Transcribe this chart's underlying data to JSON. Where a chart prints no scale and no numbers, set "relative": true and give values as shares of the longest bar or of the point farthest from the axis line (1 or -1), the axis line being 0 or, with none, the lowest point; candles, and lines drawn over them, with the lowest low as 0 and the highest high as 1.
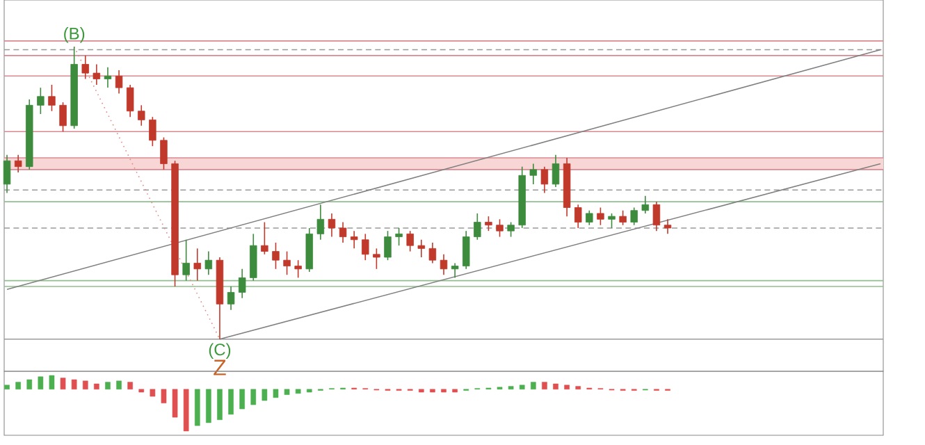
{
  "chart_data": [
    {
      "type": "candlestick",
      "relative": true,
      "categories": [
        null,
        null,
        null,
        null,
        null,
        null,
        null,
        null,
        null,
        null,
        null,
        null,
        null,
        null,
        null,
        null,
        null,
        null,
        null,
        null,
        null,
        null,
        null,
        null,
        null,
        null,
        null,
        null,
        null,
        null,
        null,
        null,
        null,
        null,
        null,
        null,
        null,
        null,
        null,
        null,
        null,
        null,
        null,
        null,
        null,
        null,
        null,
        null,
        null,
        null,
        null,
        null,
        null,
        null,
        null,
        null,
        null,
        null,
        null,
        null,
        null,
        null,
        null,
        null,
        null,
        null,
        null,
        null,
        null,
        null,
        null,
        null,
        null,
        null,
        null,
        null,
        null,
        null,
        null
      ],
      "ohlc": [
        [
          0.53,
          0.63,
          0.5,
          0.61
        ],
        [
          0.61,
          0.63,
          0.57,
          0.59
        ],
        [
          0.59,
          0.82,
          0.58,
          0.8
        ],
        [
          0.8,
          0.86,
          0.77,
          0.83
        ],
        [
          0.83,
          0.87,
          0.78,
          0.8
        ],
        [
          0.8,
          0.81,
          0.71,
          0.73
        ],
        [
          0.73,
          1.0,
          0.72,
          0.94
        ],
        [
          0.94,
          0.97,
          0.89,
          0.91
        ],
        [
          0.91,
          0.94,
          0.87,
          0.89
        ],
        [
          0.89,
          0.93,
          0.86,
          0.9
        ],
        [
          0.9,
          0.92,
          0.84,
          0.86
        ],
        [
          0.86,
          0.87,
          0.76,
          0.78
        ],
        [
          0.78,
          0.8,
          0.73,
          0.75
        ],
        [
          0.75,
          0.76,
          0.66,
          0.68
        ],
        [
          0.68,
          0.69,
          0.58,
          0.6
        ],
        [
          0.6,
          0.61,
          0.18,
          0.22
        ],
        [
          0.22,
          0.34,
          0.2,
          0.26
        ],
        [
          0.26,
          0.31,
          0.2,
          0.24
        ],
        [
          0.24,
          0.3,
          0.22,
          0.27
        ],
        [
          0.27,
          0.28,
          0.0,
          0.12
        ],
        [
          0.12,
          0.18,
          0.1,
          0.16
        ],
        [
          0.16,
          0.24,
          0.14,
          0.21
        ],
        [
          0.21,
          0.36,
          0.2,
          0.32
        ],
        [
          0.32,
          0.4,
          0.29,
          0.3
        ],
        [
          0.3,
          0.33,
          0.24,
          0.27
        ],
        [
          0.27,
          0.3,
          0.22,
          0.25
        ],
        [
          0.25,
          0.27,
          0.21,
          0.24
        ],
        [
          0.24,
          0.38,
          0.23,
          0.36
        ],
        [
          0.36,
          0.46,
          0.34,
          0.41
        ],
        [
          0.41,
          0.43,
          0.35,
          0.38
        ],
        [
          0.38,
          0.4,
          0.33,
          0.35
        ],
        [
          0.35,
          0.37,
          0.31,
          0.34
        ],
        [
          0.34,
          0.36,
          0.27,
          0.29
        ],
        [
          0.29,
          0.31,
          0.24,
          0.28
        ],
        [
          0.28,
          0.37,
          0.27,
          0.35
        ],
        [
          0.35,
          0.38,
          0.32,
          0.36
        ],
        [
          0.36,
          0.37,
          0.3,
          0.32
        ],
        [
          0.32,
          0.34,
          0.28,
          0.31
        ],
        [
          0.31,
          0.33,
          0.26,
          0.27
        ],
        [
          0.27,
          0.29,
          0.22,
          0.24
        ],
        [
          0.24,
          0.26,
          0.21,
          0.25
        ],
        [
          0.25,
          0.37,
          0.24,
          0.35
        ],
        [
          0.35,
          0.43,
          0.34,
          0.4
        ],
        [
          0.4,
          0.42,
          0.37,
          0.39
        ],
        [
          0.39,
          0.41,
          0.35,
          0.37
        ],
        [
          0.37,
          0.4,
          0.35,
          0.39
        ],
        [
          0.39,
          0.59,
          0.38,
          0.56
        ],
        [
          0.56,
          0.6,
          0.53,
          0.58
        ],
        [
          0.58,
          0.59,
          0.5,
          0.53
        ],
        [
          0.53,
          0.63,
          0.52,
          0.6
        ],
        [
          0.6,
          0.62,
          0.42,
          0.45
        ],
        [
          0.45,
          0.46,
          0.38,
          0.4
        ],
        [
          0.4,
          0.44,
          0.39,
          0.43
        ],
        [
          0.43,
          0.45,
          0.39,
          0.41
        ],
        [
          0.41,
          0.43,
          0.38,
          0.42
        ],
        [
          0.42,
          0.44,
          0.39,
          0.4
        ],
        [
          0.4,
          0.45,
          0.39,
          0.44
        ],
        [
          0.44,
          0.49,
          0.43,
          0.46
        ],
        [
          0.46,
          0.47,
          0.37,
          0.39
        ],
        [
          0.39,
          0.41,
          0.36,
          0.38
        ],
        null,
        null,
        null,
        null,
        null,
        null,
        null,
        null,
        null,
        null,
        null,
        null,
        null,
        null,
        null,
        null,
        null,
        null,
        null
      ],
      "colors": [
        "#3d8b3d",
        "#c0392b",
        "#3d8b3d",
        "#3d8b3d",
        "#c0392b",
        "#c0392b",
        "#3d8b3d",
        "#c0392b",
        "#c0392b",
        "#3d8b3d",
        "#c0392b",
        "#c0392b",
        "#c0392b",
        "#c0392b",
        "#c0392b",
        "#c0392b",
        "#3d8b3d",
        "#c0392b",
        "#3d8b3d",
        "#c0392b",
        "#3d8b3d",
        "#3d8b3d",
        "#3d8b3d",
        "#c0392b",
        "#c0392b",
        "#c0392b",
        "#c0392b",
        "#3d8b3d",
        "#3d8b3d",
        "#c0392b",
        "#c0392b",
        "#c0392b",
        "#c0392b",
        "#c0392b",
        "#3d8b3d",
        "#3d8b3d",
        "#c0392b",
        "#c0392b",
        "#c0392b",
        "#c0392b",
        "#3d8b3d",
        "#3d8b3d",
        "#3d8b3d",
        "#c0392b",
        "#c0392b",
        "#3d8b3d",
        "#3d8b3d",
        "#3d8b3d",
        "#c0392b",
        "#3d8b3d",
        "#c0392b",
        "#c0392b",
        "#3d8b3d",
        "#c0392b",
        "#3d8b3d",
        "#c0392b",
        "#3d8b3d",
        "#3d8b3d",
        "#c0392b",
        "#c0392b",
        null,
        null,
        null,
        null,
        null,
        null,
        null,
        null,
        null,
        null,
        null,
        null,
        null,
        null,
        null,
        null,
        null,
        null,
        null
      ],
      "series": [
        {
          "type": "line",
          "values": [
            0.17,
            null,
            null,
            null,
            null,
            null,
            null,
            null,
            null,
            null,
            null,
            null,
            null,
            null,
            null,
            null,
            null,
            null,
            null,
            null,
            null,
            null,
            null,
            null,
            null,
            null,
            null,
            null,
            null,
            null,
            null,
            null,
            null,
            null,
            null,
            null,
            null,
            null,
            null,
            null,
            null,
            null,
            null,
            null,
            null,
            null,
            null,
            null,
            null,
            null,
            null,
            null,
            null,
            null,
            null,
            null,
            null,
            null,
            null,
            null,
            null,
            null,
            null,
            null,
            null,
            null,
            null,
            null,
            null,
            null,
            null,
            null,
            null,
            null,
            null,
            null,
            null,
            null,
            0.99
          ],
          "color": "#808080",
          "line_style": "solid"
        },
        {
          "type": "line",
          "values": [
            null,
            null,
            null,
            null,
            null,
            null,
            null,
            null,
            null,
            null,
            null,
            null,
            null,
            null,
            null,
            null,
            null,
            null,
            null,
            0.0,
            null,
            null,
            null,
            null,
            null,
            null,
            null,
            null,
            null,
            null,
            null,
            null,
            null,
            null,
            null,
            null,
            null,
            null,
            null,
            null,
            null,
            null,
            null,
            null,
            null,
            null,
            null,
            null,
            null,
            null,
            null,
            null,
            null,
            null,
            null,
            null,
            null,
            null,
            null,
            null,
            null,
            null,
            null,
            null,
            null,
            null,
            null,
            null,
            null,
            null,
            null,
            null,
            null,
            null,
            null,
            null,
            null,
            null,
            0.6
          ],
          "color": "#808080",
          "line_style": "solid"
        },
        {
          "type": "line",
          "values": [
            null,
            null,
            null,
            null,
            null,
            null,
            1.0,
            null,
            null,
            null,
            null,
            null,
            null,
            null,
            null,
            null,
            null,
            null,
            null,
            0.0,
            null,
            null,
            null,
            null,
            null,
            null,
            null,
            null,
            null,
            null,
            null,
            null,
            null,
            null,
            null,
            null,
            null,
            null,
            null,
            null,
            null,
            null,
            null,
            null,
            null,
            null,
            null,
            null,
            null,
            null,
            null,
            null,
            null,
            null,
            null,
            null,
            null,
            null,
            null,
            null,
            null,
            null,
            null,
            null,
            null,
            null,
            null,
            null,
            null,
            null,
            null,
            null,
            null,
            null,
            null,
            null,
            null,
            null,
            null
          ],
          "color": "#e08a80",
          "line_style": "dotted"
        }
      ],
      "bands": [
        {
          "axis": "y",
          "from": 0.58,
          "to": 0.62,
          "color": "#f9d6d6"
        }
      ],
      "ref_lines": [
        {
          "axis": "y",
          "value": 1.02,
          "color": "#d98890",
          "line_style": "solid"
        },
        {
          "axis": "y",
          "value": 0.99,
          "color": "#999999",
          "line_style": "dashed"
        },
        {
          "axis": "y",
          "value": 0.97,
          "color": "#d98890",
          "line_style": "solid"
        },
        {
          "axis": "y",
          "value": 0.9,
          "color": "#d98890",
          "line_style": "solid"
        },
        {
          "axis": "y",
          "value": 0.71,
          "color": "#d98890",
          "line_style": "solid"
        },
        {
          "axis": "y",
          "value": 0.62,
          "color": "#d98890",
          "line_style": "solid"
        },
        {
          "axis": "y",
          "value": 0.58,
          "color": "#d98890",
          "line_style": "solid"
        },
        {
          "axis": "y",
          "value": 0.51,
          "color": "#999999",
          "line_style": "dashed"
        },
        {
          "axis": "y",
          "value": 0.47,
          "color": "#8fbf8f",
          "line_style": "solid"
        },
        {
          "axis": "y",
          "value": 0.38,
          "color": "#999999",
          "line_style": "dashed"
        },
        {
          "axis": "y",
          "value": 0.2,
          "color": "#8fbf8f",
          "line_style": "solid"
        },
        {
          "axis": "y",
          "value": 0.18,
          "color": "#8fbf8f",
          "line_style": "solid"
        },
        {
          "axis": "y",
          "value": 0.0,
          "color": "#999999",
          "line_style": "solid"
        }
      ],
      "annotations": [
        {
          "text": "(B)",
          "y": 1.0
        },
        {
          "text": "(C)",
          "y": 0.0
        },
        {
          "text": "Z",
          "y": 0.0
        }
      ]
    },
    {
      "type": "bar",
      "relative": true,
      "categories": [
        null,
        null,
        null,
        null,
        null,
        null,
        null,
        null,
        null,
        null,
        null,
        null,
        null,
        null,
        null,
        null,
        null,
        null,
        null,
        null,
        null,
        null,
        null,
        null,
        null,
        null,
        null,
        null,
        null,
        null,
        null,
        null,
        null,
        null,
        null,
        null,
        null,
        null,
        null,
        null,
        null,
        null,
        null,
        null,
        null,
        null,
        null,
        null,
        null,
        null,
        null,
        null,
        null,
        null,
        null,
        null,
        null,
        null,
        null,
        null,
        null,
        null,
        null,
        null,
        null,
        null,
        null,
        null,
        null,
        null,
        null,
        null,
        null,
        null,
        null,
        null,
        null,
        null,
        null
      ],
      "values": [
        0.1,
        0.17,
        0.23,
        0.3,
        0.33,
        0.27,
        0.23,
        0.2,
        0.13,
        0.17,
        0.2,
        0.17,
        -0.07,
        -0.17,
        -0.33,
        -0.67,
        -1,
        -0.87,
        -0.8,
        -0.73,
        -0.6,
        -0.47,
        -0.37,
        -0.27,
        -0.2,
        -0.13,
        -0.1,
        -0.07,
        -0.03,
        0.02,
        0.03,
        0.03,
        0.02,
        -0.02,
        -0.03,
        -0.03,
        -0.03,
        -0.07,
        -0.07,
        -0.07,
        -0.07,
        -0.03,
        0.02,
        0.03,
        0.05,
        0.07,
        0.1,
        0.17,
        0.17,
        0.13,
        0.1,
        0.07,
        0.03,
        0.02,
        -0.02,
        -0.03,
        -0.03,
        -0.02,
        -0.03,
        -0.03,
        null,
        null,
        null,
        null,
        null,
        null,
        null,
        null,
        null,
        null,
        null,
        null,
        null,
        null,
        null,
        null,
        null,
        null,
        null
      ],
      "colors": [
        "#4caf50",
        "#4caf50",
        "#4caf50",
        "#4caf50",
        "#4caf50",
        "#e05050",
        "#e05050",
        "#e05050",
        "#e05050",
        "#4caf50",
        "#4caf50",
        "#e05050",
        "#e05050",
        "#e05050",
        "#e05050",
        "#e05050",
        "#e05050",
        "#4caf50",
        "#4caf50",
        "#4caf50",
        "#4caf50",
        "#4caf50",
        "#4caf50",
        "#4caf50",
        "#4caf50",
        "#4caf50",
        "#4caf50",
        "#4caf50",
        "#4caf50",
        "#4caf50",
        "#4caf50",
        "#e05050",
        "#e05050",
        "#e05050",
        "#e05050",
        "#e05050",
        "#e05050",
        "#e05050",
        "#e05050",
        "#e05050",
        "#e05050",
        "#4caf50",
        "#4caf50",
        "#4caf50",
        "#4caf50",
        "#4caf50",
        "#4caf50",
        "#4caf50",
        "#e05050",
        "#e05050",
        "#e05050",
        "#e05050",
        "#e05050",
        "#e05050",
        "#e05050",
        "#e05050",
        "#e05050",
        "#4caf50",
        "#e05050",
        "#e05050",
        null,
        null,
        null,
        null,
        null,
        null,
        null,
        null,
        null,
        null,
        null,
        null,
        null,
        null,
        null,
        null,
        null,
        null,
        null
      ]
    }
  ]
}
